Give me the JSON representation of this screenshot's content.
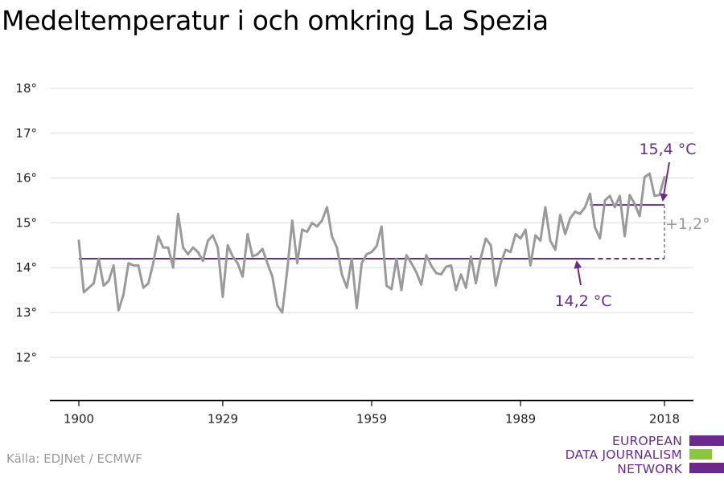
{
  "title": "Medeltemperatur i och omkring La Spezia",
  "source": "Källa: EDJNet / ECMWF",
  "logo": {
    "lines": [
      "EUROPEAN",
      "DATA JOURNALISM",
      "NETWORK"
    ],
    "colors": {
      "purple": "#6b2a8a",
      "green": "#8cc63f"
    }
  },
  "colors": {
    "series": "#9a9a9a",
    "baseline": "#6b2a8a",
    "recent": "#6b2a8a",
    "annotation_purple": "#6b2a8a",
    "difference": "#9a9a9a",
    "grid": "#dcdcdc",
    "axis": "#000000"
  },
  "chart_data": {
    "type": "line",
    "title": "Medeltemperatur i och omkring La Spezia",
    "xlabel": "",
    "ylabel": "",
    "xlim": [
      1900,
      2018
    ],
    "ylim": [
      11,
      18
    ],
    "x_ticks": [
      1900,
      1929,
      1959,
      1989,
      2018
    ],
    "x_tick_labels": [
      "1900",
      "1929",
      "1959",
      "1989",
      "2018"
    ],
    "y_ticks": [
      12,
      13,
      14,
      15,
      16,
      17,
      18
    ],
    "y_tick_labels": [
      "12°",
      "13°",
      "14°",
      "15°",
      "16°",
      "17°",
      "18°"
    ],
    "grid": "horizontal",
    "series": [
      {
        "x": [
          1900,
          1901,
          1902,
          1903,
          1904,
          1905,
          1906,
          1907,
          1908,
          1909,
          1910,
          1911,
          1912,
          1913,
          1914,
          1915,
          1916,
          1917,
          1918,
          1919,
          1920,
          1921,
          1922,
          1923,
          1924,
          1925,
          1926,
          1927,
          1928,
          1929,
          1930,
          1931,
          1932,
          1933,
          1934,
          1935,
          1936,
          1937,
          1938,
          1939,
          1940,
          1941,
          1942,
          1943,
          1944,
          1945,
          1946,
          1947,
          1948,
          1949,
          1950,
          1951,
          1952,
          1953,
          1954,
          1955,
          1956,
          1957,
          1958,
          1959,
          1960,
          1961,
          1962,
          1963,
          1964,
          1965,
          1966,
          1967,
          1968,
          1969,
          1970,
          1971,
          1972,
          1973,
          1974,
          1975,
          1976,
          1977,
          1978,
          1979,
          1980,
          1981,
          1982,
          1983,
          1984,
          1985,
          1986,
          1987,
          1988,
          1989,
          1990,
          1991,
          1992,
          1993,
          1994,
          1995,
          1996,
          1997,
          1998,
          1999,
          2000,
          2001,
          2002,
          2003,
          2004,
          2005,
          2006,
          2007,
          2008,
          2009,
          2010,
          2011,
          2012,
          2013,
          2014,
          2015,
          2016,
          2017,
          2018
        ],
        "values": [
          14.6,
          13.45,
          13.55,
          13.65,
          14.2,
          13.6,
          13.7,
          14.05,
          13.05,
          13.4,
          14.1,
          14.05,
          14.05,
          13.55,
          13.65,
          14.1,
          14.7,
          14.45,
          14.45,
          14.0,
          15.2,
          14.45,
          14.3,
          14.45,
          14.35,
          14.15,
          14.6,
          14.72,
          14.45,
          13.35,
          14.5,
          14.25,
          14.1,
          13.8,
          14.75,
          14.25,
          14.3,
          14.42,
          14.1,
          13.8,
          13.15,
          13.0,
          13.95,
          15.05,
          14.1,
          14.85,
          14.8,
          15.0,
          14.92,
          15.05,
          15.35,
          14.7,
          14.45,
          13.85,
          13.55,
          14.2,
          13.1,
          14.1,
          14.3,
          14.35,
          14.48,
          14.92,
          13.6,
          13.52,
          14.2,
          13.5,
          14.28,
          14.1,
          13.9,
          13.62,
          14.28,
          14.05,
          13.88,
          13.85,
          14.02,
          14.05,
          13.5,
          13.85,
          13.55,
          14.25,
          13.65,
          14.22,
          14.65,
          14.5,
          13.6,
          14.1,
          14.4,
          14.35,
          14.75,
          14.65,
          14.85,
          14.05,
          14.72,
          14.6,
          15.35,
          14.6,
          14.4,
          15.18,
          14.75,
          15.1,
          15.25,
          15.2,
          15.35,
          15.65,
          14.9,
          14.65,
          15.5,
          15.6,
          15.35,
          15.6,
          14.7,
          15.62,
          15.42,
          15.15,
          16.02,
          16.1,
          15.6,
          15.62,
          16.02
        ]
      }
    ],
    "reference_lines": [
      {
        "value": 14.2,
        "x_start": 1900,
        "x_end": 2003,
        "style": "solid"
      },
      {
        "value": 14.2,
        "x_start": 2003,
        "x_end": 2018,
        "style": "dashed"
      },
      {
        "value": 15.4,
        "x_start": 2003,
        "x_end": 2018,
        "style": "solid"
      }
    ],
    "annotations": {
      "baseline_label": "14,2 °C",
      "recent_label": "15,4 °C",
      "difference_label": "+1,2°"
    }
  }
}
